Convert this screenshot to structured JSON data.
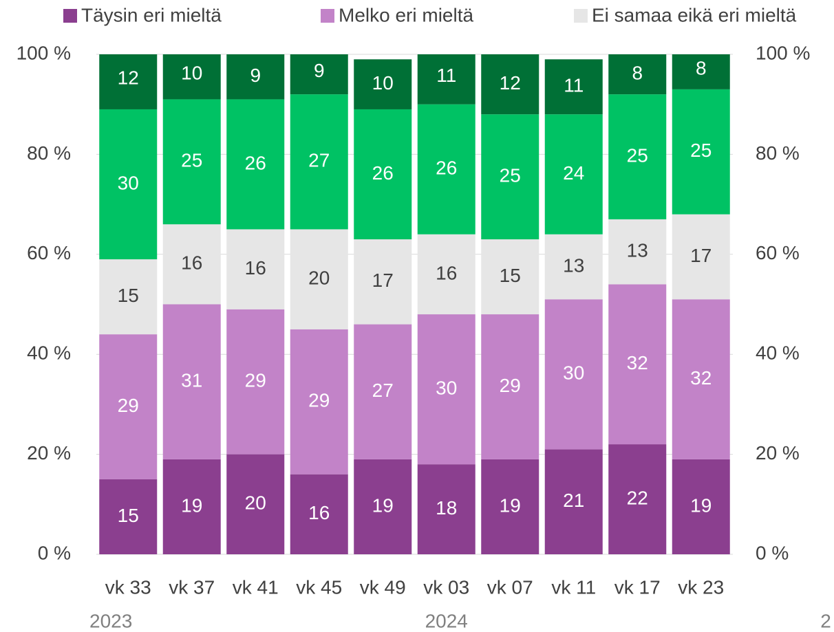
{
  "chart_data": {
    "type": "stacked_bar",
    "categories": [
      "vk 33",
      "vk 37",
      "vk 41",
      "vk 45",
      "vk 49",
      "vk 03",
      "vk 07",
      "vk 11",
      "vk 17",
      "vk 23"
    ],
    "year_labels": [
      "2023",
      "2024",
      "2"
    ],
    "series": [
      {
        "name": "Täysin eri mieltä",
        "color": "#8b3f8f",
        "values": [
          15,
          19,
          20,
          16,
          19,
          18,
          19,
          21,
          22,
          19
        ]
      },
      {
        "name": "Melko eri mieltä",
        "color": "#c283c8",
        "values": [
          29,
          31,
          29,
          29,
          27,
          30,
          29,
          30,
          32,
          32
        ]
      },
      {
        "name": "Ei samaa eikä eri mieltä",
        "color": "#e6e6e6",
        "values": [
          15,
          16,
          16,
          20,
          17,
          16,
          15,
          13,
          13,
          17
        ]
      },
      {
        "color": "#00c264",
        "values": [
          30,
          25,
          26,
          27,
          26,
          26,
          25,
          24,
          25,
          25
        ]
      },
      {
        "color": "#007036",
        "values": [
          12,
          10,
          9,
          9,
          10,
          11,
          12,
          11,
          8,
          8
        ]
      }
    ],
    "ylim": [
      0,
      100
    ],
    "yticks": [
      {
        "value": 0,
        "label": "0 %"
      },
      {
        "value": 20,
        "label": "20 %"
      },
      {
        "value": 40,
        "label": "40 %"
      },
      {
        "value": 60,
        "label": "60 %"
      },
      {
        "value": 80,
        "label": "80 %"
      },
      {
        "value": 100,
        "label": "100 %"
      }
    ],
    "y2lim": [
      0,
      100
    ],
    "y2ticks": [
      {
        "value": 0,
        "label": "0 %"
      },
      {
        "value": 20,
        "label": "20 %"
      },
      {
        "value": 40,
        "label": "40 %"
      },
      {
        "value": 60,
        "label": "60 %"
      },
      {
        "value": 80,
        "label": "80 %"
      },
      {
        "value": 100,
        "label": "100 %"
      }
    ],
    "grid": true,
    "legend": "top"
  }
}
